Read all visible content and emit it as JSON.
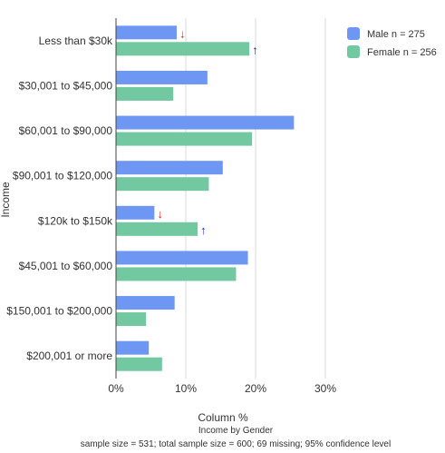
{
  "chart_data": {
    "type": "bar",
    "orientation": "horizontal",
    "categories": [
      "Less than $30k",
      "$30,001 to $45,000",
      "$60,001 to $90,000",
      "$90,001 to $120,000",
      "$120k to $150k",
      "$45,001 to $60,000",
      "$150,001 to $200,000",
      "$200,001 or more"
    ],
    "series": [
      {
        "name": "Male n = 275",
        "color": "#6e97f4",
        "values": [
          8.7,
          13.1,
          25.5,
          15.3,
          5.5,
          18.9,
          8.4,
          4.7
        ]
      },
      {
        "name": "Female n = 256",
        "color": "#72c8a0",
        "values": [
          19.1,
          8.2,
          19.5,
          13.3,
          11.7,
          17.2,
          4.3,
          6.6
        ]
      }
    ],
    "significance": [
      {
        "category": "Less than $30k",
        "series": "Male n = 275",
        "direction": "down",
        "symbol": "↓"
      },
      {
        "category": "Less than $30k",
        "series": "Female n = 256",
        "direction": "up",
        "symbol": "↑"
      },
      {
        "category": "$120k to $150k",
        "series": "Male n = 275",
        "direction": "down",
        "symbol": "↓"
      },
      {
        "category": "$120k to $150k",
        "series": "Female n = 256",
        "direction": "up",
        "symbol": "↑"
      }
    ],
    "xlim": [
      0,
      36
    ],
    "xticks": [
      0,
      10,
      20,
      30
    ],
    "xtick_labels": [
      "0%",
      "10%",
      "20%",
      "30%"
    ],
    "xlabel": "Column %",
    "ylabel": "Income",
    "grid": true,
    "legend_position": "top-right",
    "footer_title": "Income by Gender",
    "footer_note": "sample size = 531; total sample size = 600; 69 missing; 95% confidence level"
  }
}
